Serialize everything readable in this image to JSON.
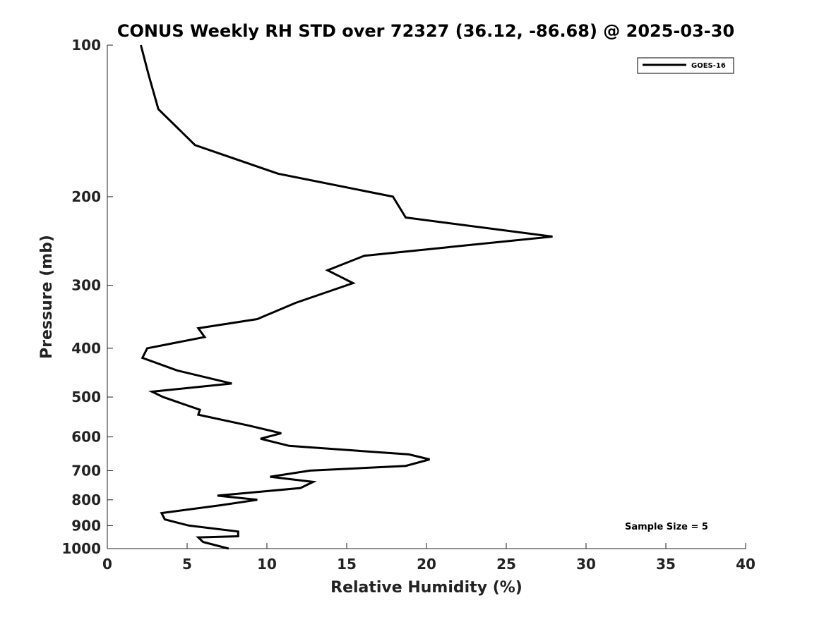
{
  "chart_data": {
    "type": "line",
    "title": "CONUS Weekly RH STD over 72327 (36.12, -86.68) @ 2025-03-30",
    "xlabel": "Relative Humidity (%)",
    "ylabel": "Pressure (mb)",
    "xlim": [
      0,
      40
    ],
    "ylim": [
      100,
      1000
    ],
    "y_scale": "log",
    "y_inverted": true,
    "x_ticks": [
      0,
      5,
      10,
      15,
      20,
      25,
      30,
      35,
      40
    ],
    "y_ticks": [
      100,
      200,
      300,
      400,
      500,
      600,
      700,
      800,
      900,
      1000
    ],
    "grid": false,
    "legend_position": "top-right",
    "series": [
      {
        "name": "GOES-16",
        "color": "#000000",
        "points": [
          [
            2.1,
            100
          ],
          [
            2.6,
            115
          ],
          [
            3.2,
            134
          ],
          [
            5.5,
            158
          ],
          [
            10.7,
            180
          ],
          [
            17.9,
            200
          ],
          [
            18.7,
            220
          ],
          [
            27.9,
            240
          ],
          [
            16.1,
            262
          ],
          [
            13.8,
            280
          ],
          [
            15.4,
            297
          ],
          [
            11.8,
            325
          ],
          [
            9.4,
            350
          ],
          [
            5.7,
            365
          ],
          [
            6.1,
            380
          ],
          [
            2.5,
            400
          ],
          [
            2.2,
            418
          ],
          [
            4.4,
            443
          ],
          [
            7.8,
            470
          ],
          [
            2.8,
            488
          ],
          [
            3.5,
            500
          ],
          [
            5.8,
            530
          ],
          [
            5.7,
            542
          ],
          [
            8.9,
            570
          ],
          [
            10.9,
            590
          ],
          [
            9.6,
            605
          ],
          [
            11.4,
            625
          ],
          [
            18.9,
            650
          ],
          [
            20.2,
            665
          ],
          [
            18.7,
            685
          ],
          [
            12.7,
            700
          ],
          [
            10.2,
            720
          ],
          [
            12.9,
            737
          ],
          [
            12.1,
            758
          ],
          [
            6.9,
            785
          ],
          [
            9.4,
            800
          ],
          [
            7.1,
            820
          ],
          [
            3.4,
            850
          ],
          [
            3.6,
            875
          ],
          [
            5.1,
            900
          ],
          [
            8.2,
            925
          ],
          [
            8.2,
            945
          ],
          [
            5.7,
            950
          ],
          [
            6.0,
            970
          ],
          [
            7.6,
            1000
          ]
        ]
      }
    ],
    "annotations": [
      "Sample Size = 5"
    ]
  }
}
